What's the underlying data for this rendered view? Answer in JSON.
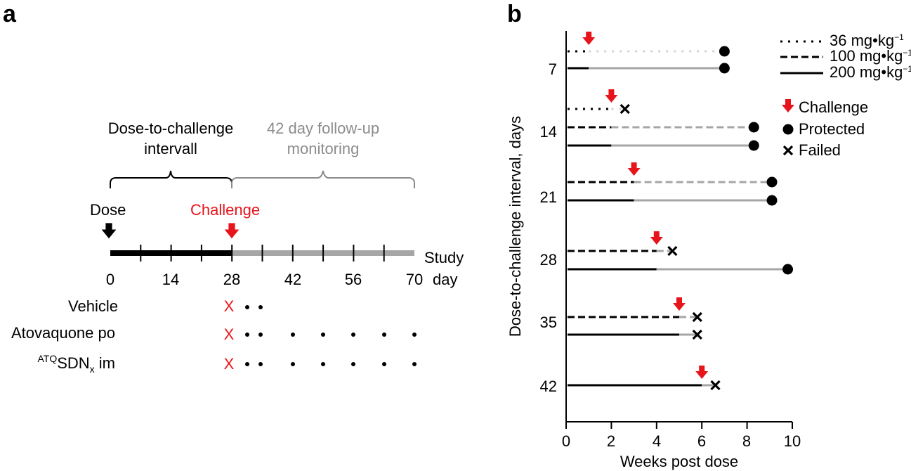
{
  "panel_a": {
    "letter": "a",
    "bracket_left_label": [
      "Dose-to-challenge",
      "intervall"
    ],
    "bracket_right_label": [
      "42 day follow-up",
      "monitoring"
    ],
    "dose_label": "Dose",
    "challenge_label": "Challenge",
    "study_day_label": [
      "Study",
      "day"
    ],
    "ticks": [
      "0",
      "14",
      "28",
      "42",
      "56",
      "70"
    ],
    "groups": [
      {
        "name": "Vehicle",
        "failure_mark": "X",
        "observations": 2
      },
      {
        "name": "Atovaquone po",
        "failure_mark": "X",
        "observations": 7
      },
      {
        "name_sup": "ATQ",
        "name_main": "SDN",
        "name_sub": "x",
        "name_suffix": " im",
        "failure_mark": "X",
        "observations": 7
      }
    ]
  },
  "chart_data": {
    "type": "line",
    "panel_letter": "b",
    "title": "",
    "xlabel": "Weeks post dose",
    "ylabel": "Dose-to-challenge interval, days",
    "xlim": [
      0,
      10
    ],
    "xticks": [
      "0",
      "2",
      "4",
      "6",
      "8",
      "10"
    ],
    "yticks": [
      "7",
      "14",
      "21",
      "28",
      "35",
      "42"
    ],
    "legend_position": "top-right",
    "legend": {
      "doses": [
        {
          "label": "36 mg•kg",
          "exp": "−1",
          "style": "dotted"
        },
        {
          "label": "100 mg•kg",
          "exp": "−1",
          "style": "dashed"
        },
        {
          "label": "200 mg•kg",
          "exp": "−1",
          "style": "solid"
        }
      ],
      "markers": [
        {
          "label": "Challenge",
          "symbol": "arrow",
          "color": "#e8141b"
        },
        {
          "label": "Protected",
          "symbol": "circle",
          "color": "#000000"
        },
        {
          "label": "Failed",
          "symbol": "cross",
          "color": "#000000"
        }
      ]
    },
    "groups": [
      {
        "interval": "7",
        "challenge_week": 1,
        "lines": [
          {
            "dose": "36",
            "style": "dotted",
            "end_week": 7.0,
            "outcome": "protected"
          },
          {
            "dose": "200",
            "style": "solid",
            "end_week": 7.0,
            "outcome": "protected"
          }
        ]
      },
      {
        "interval": "14",
        "challenge_week": 2,
        "lines": [
          {
            "dose": "36",
            "style": "dotted",
            "end_week": 2.6,
            "outcome": "failed"
          },
          {
            "dose": "100",
            "style": "dashed",
            "end_week": 8.3,
            "outcome": "protected"
          },
          {
            "dose": "200",
            "style": "solid",
            "end_week": 8.3,
            "outcome": "protected"
          }
        ]
      },
      {
        "interval": "21",
        "challenge_week": 3,
        "lines": [
          {
            "dose": "100",
            "style": "dashed",
            "end_week": 9.1,
            "outcome": "protected"
          },
          {
            "dose": "200",
            "style": "solid",
            "end_week": 9.1,
            "outcome": "protected"
          }
        ]
      },
      {
        "interval": "28",
        "challenge_week": 4,
        "lines": [
          {
            "dose": "100",
            "style": "dashed",
            "end_week": 4.7,
            "outcome": "failed"
          },
          {
            "dose": "200",
            "style": "solid",
            "end_week": 9.8,
            "outcome": "protected"
          }
        ]
      },
      {
        "interval": "35",
        "challenge_week": 5,
        "lines": [
          {
            "dose": "100",
            "style": "dashed",
            "end_week": 5.8,
            "outcome": "failed"
          },
          {
            "dose": "200",
            "style": "solid",
            "end_week": 5.8,
            "outcome": "failed"
          }
        ]
      },
      {
        "interval": "42",
        "challenge_week": 6,
        "lines": [
          {
            "dose": "200",
            "style": "solid",
            "end_week": 6.6,
            "outcome": "failed"
          }
        ]
      }
    ],
    "colors": {
      "pre": "#000000",
      "post": "#a6a6a6",
      "post_light": "#d3d3d3",
      "challenge": "#e8141b"
    }
  }
}
